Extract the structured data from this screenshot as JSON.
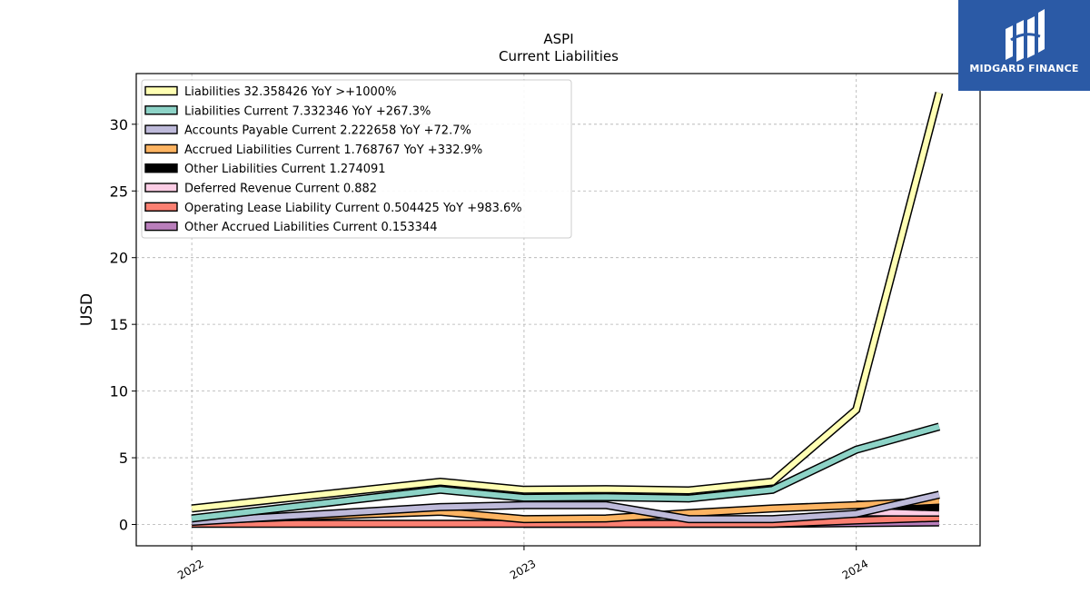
{
  "brand": {
    "name": "MIDGARD FINANCE",
    "bg": "#2b5aa6"
  },
  "chart_data": {
    "type": "line",
    "title": "ASPI",
    "subtitle": "Current  Liabilities",
    "ylabel": "USD",
    "xlabel": "",
    "x_ticks": [
      "2022",
      "2023",
      "2024"
    ],
    "y_ticks": [
      "0",
      "5",
      "10",
      "15",
      "20",
      "25",
      "30"
    ],
    "ylim": [
      -1.6,
      33.8
    ],
    "xlim": [
      "2021-11-01",
      "2024-05-16"
    ],
    "grid": true,
    "legend_position": "top-left",
    "series": [
      {
        "name": "Liabilities",
        "legend": "Liabilities  32.358426 YoY >+1000%",
        "color": "#ffffb3",
        "points": [
          [
            "2022-01-01",
            1.2
          ],
          [
            "2022-10-01",
            3.2
          ],
          [
            "2023-01-01",
            2.6
          ],
          [
            "2023-04-01",
            2.65
          ],
          [
            "2023-07-01",
            2.55
          ],
          [
            "2023-10-01",
            3.2
          ],
          [
            "2024-01-01",
            8.6
          ],
          [
            "2024-04-01",
            32.358426
          ]
        ]
      },
      {
        "name": "Liabilities Current",
        "legend": "Liabilities Current  7.332346 YoY +267.3%",
        "color": "#8dd3c7",
        "points": [
          [
            "2022-01-01",
            0.45
          ],
          [
            "2022-10-01",
            2.6
          ],
          [
            "2023-01-01",
            2.0
          ],
          [
            "2023-04-01",
            2.05
          ],
          [
            "2023-07-01",
            1.95
          ],
          [
            "2023-10-01",
            2.6
          ],
          [
            "2024-01-01",
            5.6
          ],
          [
            "2024-04-01",
            7.332346
          ]
        ]
      },
      {
        "name": "Accounts Payable Current",
        "legend": "Accounts Payable Current  2.222658 YoY +72.7%",
        "color": "#bebada",
        "points": [
          [
            "2022-01-01",
            0.2
          ],
          [
            "2022-10-01",
            1.3
          ],
          [
            "2023-01-01",
            1.45
          ],
          [
            "2023-04-01",
            1.45
          ],
          [
            "2023-07-01",
            0.4
          ],
          [
            "2023-10-01",
            0.4
          ],
          [
            "2024-01-01",
            0.8
          ],
          [
            "2024-04-01",
            2.222658
          ]
        ]
      },
      {
        "name": "Accrued Liabilities Current",
        "legend": "Accrued Liabilities Current  1.768767 YoY +332.9%",
        "color": "#fdb462",
        "points": [
          [
            "2022-01-01",
            0.3
          ],
          [
            "2022-10-01",
            0.95
          ],
          [
            "2023-01-01",
            0.4
          ],
          [
            "2023-04-01",
            0.45
          ],
          [
            "2023-07-01",
            0.85
          ],
          [
            "2023-10-01",
            1.2
          ],
          [
            "2024-01-01",
            1.45
          ],
          [
            "2024-04-01",
            1.768767
          ]
        ]
      },
      {
        "name": "Other Liabilities Current",
        "legend": "Other Liabilities Current  1.274091",
        "color": "#000000",
        "points": [
          [
            "2024-01-01",
            1.5
          ],
          [
            "2024-04-01",
            1.274091
          ]
        ]
      },
      {
        "name": "Deferred Revenue Current",
        "legend": "Deferred Revenue Current  0.882",
        "color": "#fccde5",
        "points": [
          [
            "2024-01-01",
            0.9
          ],
          [
            "2024-04-01",
            0.882
          ]
        ]
      },
      {
        "name": "Operating Lease Liability Current",
        "legend": "Operating Lease Liability Current  0.504425 YoY +983.6%",
        "color": "#fb8072",
        "points": [
          [
            "2022-01-01",
            0.05
          ],
          [
            "2022-10-01",
            0.05
          ],
          [
            "2023-01-01",
            0.05
          ],
          [
            "2023-04-01",
            0.05
          ],
          [
            "2023-07-01",
            0.05
          ],
          [
            "2023-10-01",
            0.05
          ],
          [
            "2024-01-01",
            0.3
          ],
          [
            "2024-04-01",
            0.504425
          ]
        ]
      },
      {
        "name": "Other Accrued Liabilities Current",
        "legend": "Other Accrued Liabilities Current  0.153344",
        "color": "#b97ebb",
        "points": [
          [
            "2023-01-01",
            0.05
          ],
          [
            "2023-04-01",
            0.05
          ],
          [
            "2023-07-01",
            0.05
          ],
          [
            "2023-10-01",
            0.05
          ],
          [
            "2024-01-01",
            0.1
          ],
          [
            "2024-04-01",
            0.153344
          ]
        ]
      }
    ]
  }
}
